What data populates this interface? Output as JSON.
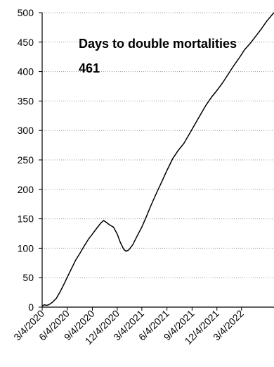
{
  "chart_data": {
    "type": "line",
    "title": "",
    "xlabel": "",
    "ylabel": "",
    "ylim": [
      0,
      500
    ],
    "xlim": [
      "2020-03-04",
      "2022-07-01"
    ],
    "y_ticks": [
      0,
      50,
      100,
      150,
      200,
      250,
      300,
      350,
      400,
      450,
      500
    ],
    "x_ticks": [
      {
        "label": "3/4/2020",
        "date": "2020-03-04"
      },
      {
        "label": "6/4/2020",
        "date": "2020-06-04"
      },
      {
        "label": "9/4/2020",
        "date": "2020-09-04"
      },
      {
        "label": "12/4/2020",
        "date": "2020-12-04"
      },
      {
        "label": "3/4/2021",
        "date": "2021-03-04"
      },
      {
        "label": "6/4/2021",
        "date": "2021-06-04"
      },
      {
        "label": "9/4/2021",
        "date": "2021-09-04"
      },
      {
        "label": "12/4/2021",
        "date": "2021-12-04"
      },
      {
        "label": "3/4/2022",
        "date": "2022-03-04"
      }
    ],
    "grid": "horizontal dotted",
    "line_color": "#000000",
    "annotations": [
      {
        "text": "Days to double mortalities"
      },
      {
        "text": "461"
      }
    ],
    "series": [
      {
        "points": [
          [
            "2020-03-04",
            2
          ],
          [
            "2020-03-12",
            4
          ],
          [
            "2020-03-20",
            3
          ],
          [
            "2020-03-28",
            4
          ],
          [
            "2020-04-10",
            8
          ],
          [
            "2020-04-25",
            15
          ],
          [
            "2020-05-10",
            27
          ],
          [
            "2020-05-25",
            41
          ],
          [
            "2020-06-04",
            51
          ],
          [
            "2020-06-20",
            66
          ],
          [
            "2020-07-05",
            80
          ],
          [
            "2020-07-20",
            91
          ],
          [
            "2020-08-05",
            104
          ],
          [
            "2020-08-20",
            115
          ],
          [
            "2020-09-04",
            124
          ],
          [
            "2020-09-20",
            134
          ],
          [
            "2020-10-05",
            143
          ],
          [
            "2020-10-15",
            147
          ],
          [
            "2020-10-25",
            144
          ],
          [
            "2020-11-05",
            140
          ],
          [
            "2020-11-20",
            136
          ],
          [
            "2020-12-04",
            124
          ],
          [
            "2020-12-15",
            110
          ],
          [
            "2020-12-28",
            98
          ],
          [
            "2021-01-05",
            95
          ],
          [
            "2021-01-15",
            97
          ],
          [
            "2021-01-30",
            106
          ],
          [
            "2021-02-15",
            121
          ],
          [
            "2021-03-04",
            136
          ],
          [
            "2021-03-20",
            153
          ],
          [
            "2021-04-05",
            171
          ],
          [
            "2021-04-25",
            192
          ],
          [
            "2021-05-15",
            212
          ],
          [
            "2021-06-04",
            232
          ],
          [
            "2021-06-25",
            252
          ],
          [
            "2021-07-15",
            266
          ],
          [
            "2021-08-05",
            278
          ],
          [
            "2021-08-25",
            294
          ],
          [
            "2021-09-15",
            311
          ],
          [
            "2021-10-05",
            327
          ],
          [
            "2021-10-25",
            343
          ],
          [
            "2021-11-15",
            357
          ],
          [
            "2021-12-04",
            368
          ],
          [
            "2021-12-25",
            381
          ],
          [
            "2022-01-15",
            396
          ],
          [
            "2022-02-05",
            411
          ],
          [
            "2022-02-25",
            424
          ],
          [
            "2022-03-15",
            437
          ],
          [
            "2022-04-05",
            448
          ],
          [
            "2022-04-25",
            460
          ],
          [
            "2022-05-15",
            472
          ],
          [
            "2022-06-05",
            486
          ],
          [
            "2022-06-25",
            497
          ],
          [
            "2022-07-01",
            500
          ]
        ]
      }
    ]
  }
}
